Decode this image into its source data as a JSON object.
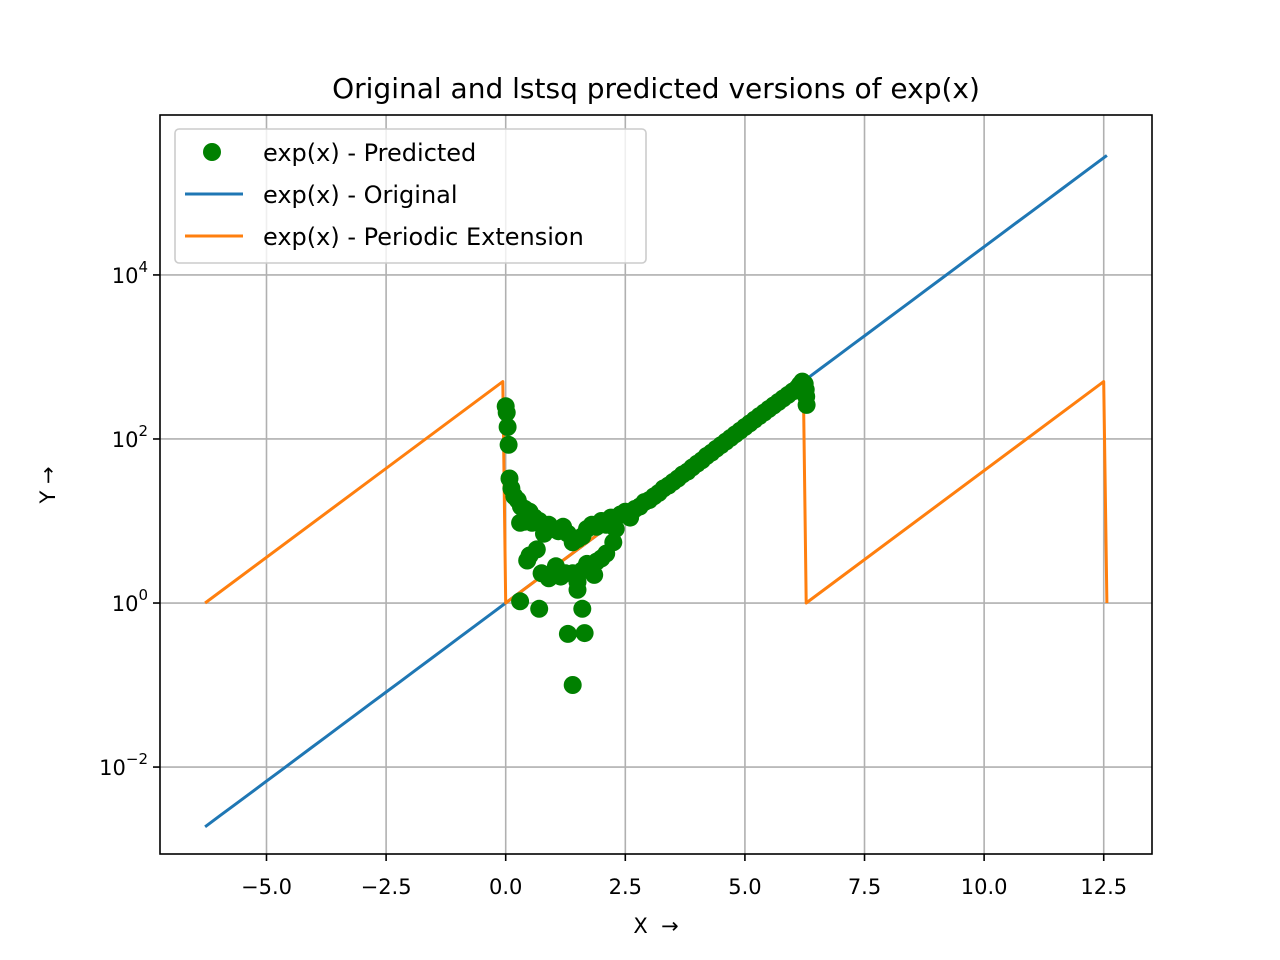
{
  "chart_data": {
    "type": "line",
    "title": "Original and lstsq predicted versions of exp(x)",
    "xlabel": "X  →",
    "ylabel": "Y →",
    "xlim": [
      -7.226,
      13.509
    ],
    "ylim_log10": [
      -3.06,
      5.95
    ],
    "yscale": "log",
    "grid": true,
    "legend_position": "top-left",
    "x_ticks": [
      {
        "value": -5.0,
        "label": "−5.0"
      },
      {
        "value": -2.5,
        "label": "−2.5"
      },
      {
        "value": 0.0,
        "label": "0.0"
      },
      {
        "value": 2.5,
        "label": "2.5"
      },
      {
        "value": 5.0,
        "label": "5.0"
      },
      {
        "value": 7.5,
        "label": "7.5"
      },
      {
        "value": 10.0,
        "label": "10.0"
      },
      {
        "value": 12.5,
        "label": "12.5"
      }
    ],
    "y_ticks": [
      {
        "exp": -2,
        "label_base": "10",
        "label_exp": "−2"
      },
      {
        "exp": 0,
        "label_base": "10",
        "label_exp": "0"
      },
      {
        "exp": 2,
        "label_base": "10",
        "label_exp": "2"
      },
      {
        "exp": 4,
        "label_base": "10",
        "label_exp": "4"
      }
    ],
    "series": [
      {
        "name": "exp(x) - Predicted",
        "kind": "scatter",
        "color": "#008000",
        "points": [
          [
            0.0,
            250
          ],
          [
            0.02,
            210
          ],
          [
            0.04,
            140
          ],
          [
            0.06,
            85
          ],
          [
            0.08,
            33
          ],
          [
            0.12,
            25
          ],
          [
            0.18,
            20
          ],
          [
            0.25,
            18
          ],
          [
            0.32,
            15
          ],
          [
            0.4,
            14
          ],
          [
            0.5,
            13
          ],
          [
            0.55,
            9.5
          ],
          [
            0.6,
            11
          ],
          [
            0.7,
            10
          ],
          [
            0.8,
            7
          ],
          [
            0.9,
            9
          ],
          [
            1.0,
            8
          ],
          [
            1.1,
            7.5
          ],
          [
            1.2,
            8.5
          ],
          [
            1.3,
            7
          ],
          [
            1.4,
            5.5
          ],
          [
            1.5,
            6
          ],
          [
            1.6,
            6.5
          ],
          [
            1.7,
            8
          ],
          [
            1.8,
            9
          ],
          [
            1.9,
            8.5
          ],
          [
            2.0,
            10
          ],
          [
            2.1,
            9
          ],
          [
            2.2,
            11
          ],
          [
            2.3,
            8
          ],
          [
            2.4,
            12
          ],
          [
            2.5,
            13
          ],
          [
            2.6,
            11
          ],
          [
            2.7,
            14
          ],
          [
            2.8,
            15
          ],
          [
            2.9,
            17
          ],
          [
            3.0,
            18
          ],
          [
            3.1,
            20
          ],
          [
            3.2,
            22
          ],
          [
            3.3,
            25
          ],
          [
            3.4,
            27
          ],
          [
            3.5,
            30
          ],
          [
            3.6,
            33
          ],
          [
            3.7,
            37
          ],
          [
            3.8,
            40
          ],
          [
            3.9,
            45
          ],
          [
            4.0,
            50
          ],
          [
            4.1,
            55
          ],
          [
            4.2,
            62
          ],
          [
            4.3,
            68
          ],
          [
            4.4,
            76
          ],
          [
            4.5,
            84
          ],
          [
            4.6,
            93
          ],
          [
            4.7,
            103
          ],
          [
            4.8,
            114
          ],
          [
            4.9,
            126
          ],
          [
            5.0,
            140
          ],
          [
            5.1,
            155
          ],
          [
            5.2,
            172
          ],
          [
            5.3,
            190
          ],
          [
            5.4,
            210
          ],
          [
            5.5,
            232
          ],
          [
            5.6,
            256
          ],
          [
            5.7,
            282
          ],
          [
            5.8,
            312
          ],
          [
            5.9,
            345
          ],
          [
            6.0,
            380
          ],
          [
            6.1,
            420
          ],
          [
            6.15,
            460
          ],
          [
            6.2,
            500
          ],
          [
            6.25,
            470
          ],
          [
            6.27,
            400
          ],
          [
            6.28,
            330
          ],
          [
            6.29,
            260
          ],
          [
            0.3,
            9.5
          ],
          [
            0.4,
            9.8
          ],
          [
            0.45,
            3.3
          ],
          [
            0.5,
            3.8
          ],
          [
            0.65,
            4.5
          ],
          [
            0.75,
            2.3
          ],
          [
            0.9,
            2.0
          ],
          [
            1.05,
            2.8
          ],
          [
            1.15,
            2.1
          ],
          [
            1.25,
            2.3
          ],
          [
            1.4,
            2.3
          ],
          [
            1.5,
            1.8
          ],
          [
            1.6,
            2.5
          ],
          [
            1.7,
            3.0
          ],
          [
            1.8,
            2.7
          ],
          [
            1.85,
            2.2
          ],
          [
            1.9,
            3.2
          ],
          [
            2.0,
            3.5
          ],
          [
            2.1,
            4.0
          ],
          [
            2.25,
            5.5
          ],
          [
            0.3,
            1.05
          ],
          [
            0.7,
            0.85
          ],
          [
            1.3,
            0.42
          ],
          [
            1.5,
            1.45
          ],
          [
            1.6,
            0.85
          ],
          [
            1.65,
            0.43
          ],
          [
            1.4,
            0.1
          ]
        ]
      },
      {
        "name": "exp(x) - Original",
        "kind": "line",
        "color": "#1f77b4",
        "x": [
          -6.283,
          12.566
        ]
      },
      {
        "name": "exp(x) - Periodic Extension",
        "kind": "line",
        "color": "#ff7f0e",
        "x": [
          -6.283,
          -0.06,
          0.0,
          6.22,
          6.28,
          12.5,
          12.566
        ],
        "y": [
          1.0,
          500,
          1.0,
          500,
          1.0,
          500,
          1.0
        ]
      }
    ]
  }
}
